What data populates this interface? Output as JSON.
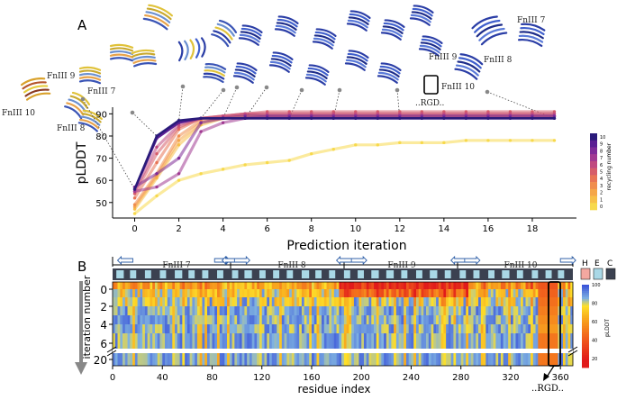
{
  "chart_data": [
    {
      "panel": "A",
      "type": "line",
      "xlabel": "Prediction iteration",
      "ylabel": "pLDDT",
      "xlim": [
        -1,
        20
      ],
      "ylim": [
        43,
        93
      ],
      "xticks": [
        "0",
        "2",
        "4",
        "6",
        "8",
        "10",
        "12",
        "14",
        "16",
        "18"
      ],
      "yticks": [
        "50",
        "60",
        "70",
        "80",
        "90"
      ],
      "x": [
        0,
        1,
        2,
        3,
        4,
        5,
        6,
        7,
        8,
        9,
        10,
        11,
        12,
        13,
        14,
        15,
        16,
        17,
        18,
        19
      ],
      "colorbar": {
        "label": "recycling number",
        "ticks": [
          "0",
          "1",
          "2",
          "3",
          "4",
          "5",
          "6",
          "7",
          "8",
          "9",
          "10"
        ],
        "colors": [
          "#f7d94c",
          "#f7c048",
          "#f5a74a",
          "#f08e4f",
          "#e87556",
          "#d65d6a",
          "#c04a80",
          "#a13a92",
          "#7f2c98",
          "#5b1f93",
          "#2a1a7a"
        ]
      },
      "series": [
        {
          "name": "0",
          "color": "#f7d94c",
          "values": [
            45,
            53,
            60,
            63,
            65,
            67,
            68,
            69,
            72,
            74,
            76,
            76,
            77,
            77,
            77,
            78,
            78,
            78,
            78,
            78
          ]
        },
        {
          "name": "1",
          "color": "#f7c048",
          "values": [
            47,
            61,
            76,
            85,
            88,
            89,
            89,
            89,
            89,
            89,
            89,
            89,
            89,
            89,
            89,
            89,
            89,
            89,
            89,
            89
          ]
        },
        {
          "name": "2",
          "color": "#f5a74a",
          "values": [
            48,
            62,
            78,
            86,
            88,
            89,
            89,
            89,
            89,
            89,
            89,
            89,
            89,
            89,
            89,
            89,
            89,
            89,
            89,
            89
          ]
        },
        {
          "name": "3",
          "color": "#f08e4f",
          "values": [
            49,
            63,
            80,
            87,
            88,
            89,
            89,
            89,
            89,
            89,
            89,
            89,
            89,
            89,
            89,
            89,
            89,
            89,
            89,
            89
          ]
        },
        {
          "name": "4",
          "color": "#e87556",
          "values": [
            52,
            68,
            83,
            88,
            89,
            90,
            90,
            90,
            90,
            90,
            90,
            90,
            90,
            90,
            90,
            90,
            90,
            90,
            90,
            90
          ]
        },
        {
          "name": "5",
          "color": "#d65d6a",
          "values": [
            54,
            72,
            84,
            88,
            89,
            90,
            91,
            91,
            91,
            91,
            91,
            91,
            91,
            91,
            91,
            91,
            91,
            91,
            91,
            91
          ]
        },
        {
          "name": "6",
          "color": "#c04a80",
          "values": [
            55,
            75,
            85,
            88,
            89,
            90,
            90,
            90,
            90,
            90,
            90,
            90,
            90,
            90,
            90,
            90,
            90,
            90,
            90,
            90
          ]
        },
        {
          "name": "7",
          "color": "#a13a92",
          "values": [
            55,
            57,
            63,
            82,
            86,
            88,
            89,
            89,
            89,
            89,
            89,
            89,
            89,
            89,
            89,
            89,
            89,
            89,
            89,
            89
          ]
        },
        {
          "name": "8",
          "color": "#7f2c98",
          "values": [
            57,
            63,
            70,
            86,
            88,
            89,
            89,
            89,
            89,
            89,
            89,
            89,
            89,
            89,
            89,
            89,
            89,
            89,
            89,
            89
          ]
        },
        {
          "name": "9",
          "color": "#5b1f93",
          "values": [
            56,
            79,
            86,
            88,
            88,
            88,
            88,
            88,
            88,
            88,
            88,
            88,
            88,
            88,
            88,
            88,
            88,
            88,
            88,
            88
          ]
        },
        {
          "name": "10",
          "color": "#2a1a7a",
          "values": [
            56,
            80,
            87,
            88,
            88,
            88,
            88,
            88,
            88,
            88,
            88,
            88,
            88,
            88,
            88,
            88,
            88,
            88,
            88,
            88
          ]
        }
      ],
      "structure_annotations": [
        "FnIII 9",
        "FnIII 7",
        "FnIII 10",
        "FnIII 8",
        "FnIII 7",
        "FnIII 9",
        "FnIII 8",
        "FnIII 10",
        "..RGD.."
      ]
    },
    {
      "panel": "B",
      "type": "heatmap",
      "xlabel": "residue index",
      "ylabel": "iteration number",
      "xticks": [
        "0",
        "40",
        "80",
        "120",
        "160",
        "200",
        "240",
        "280",
        "320",
        "360"
      ],
      "yticks": [
        "0",
        "2",
        "4",
        "6",
        "20"
      ],
      "xlim": [
        0,
        370
      ],
      "rows": [
        0,
        1,
        2,
        3,
        4,
        5,
        6,
        20
      ],
      "colorbar": {
        "label": "pLDDT",
        "ticks": [
          "20",
          "40",
          "60",
          "80",
          "100"
        ],
        "colors": [
          "#e11b1b",
          "#f2541d",
          "#f79c1e",
          "#fde02a",
          "#7fb2e0",
          "#3b55d9"
        ]
      },
      "secondary_structure_legend": [
        {
          "label": "H",
          "color": "#f4a8a0"
        },
        {
          "label": "E",
          "color": "#a9d8e6"
        },
        {
          "label": "C",
          "color": "#3b4150"
        }
      ],
      "domains": [
        "FnIII 7",
        "FnIII 8",
        "FnIII 9",
        "FnIII 10"
      ],
      "annotation": "..RGD.."
    }
  ],
  "panels": {
    "a": "A",
    "b": "B"
  }
}
